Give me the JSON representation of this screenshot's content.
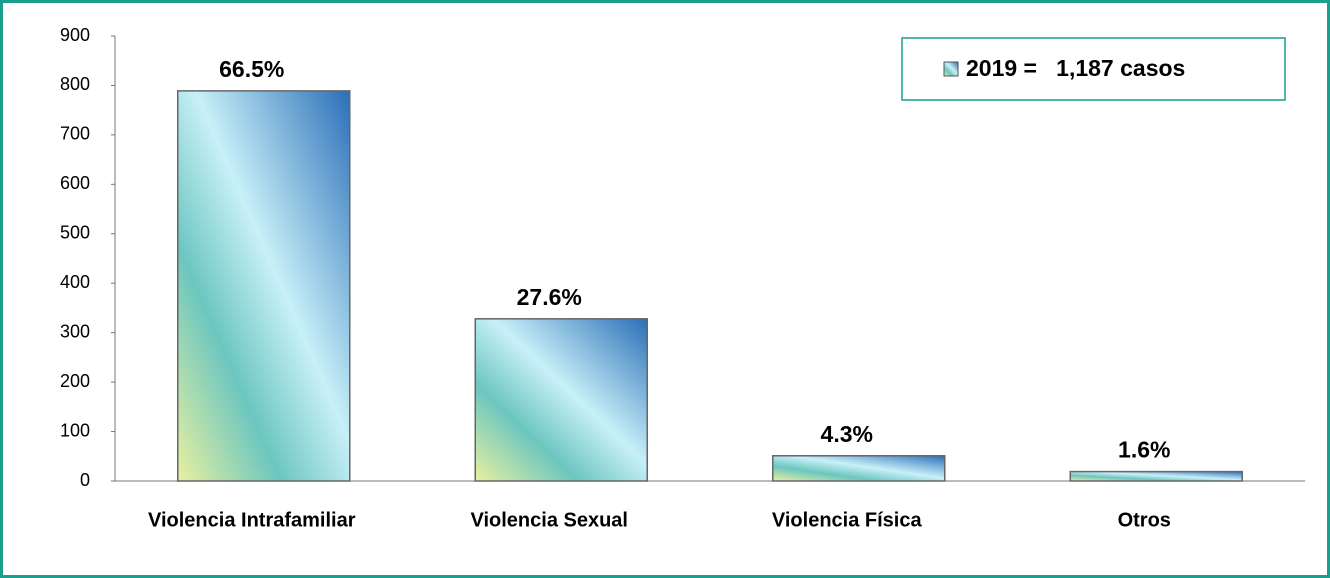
{
  "chart_data": {
    "type": "bar",
    "categories": [
      "Violencia Intrafamiliar",
      "Violencia Sexual",
      "Violencia Física",
      "Otros"
    ],
    "series": [
      {
        "name": "2019 =   1,187 casos",
        "color": "#2b6fb8",
        "values": [
          789,
          328,
          51,
          19
        ],
        "value_labels": [
          "66.5%",
          "27.6%",
          "4.3%",
          "1.6%"
        ]
      }
    ],
    "ylim": [
      0,
      900
    ],
    "yticks": [
      0,
      100,
      200,
      300,
      400,
      500,
      600,
      700,
      800,
      900
    ],
    "legend": "top-right"
  }
}
